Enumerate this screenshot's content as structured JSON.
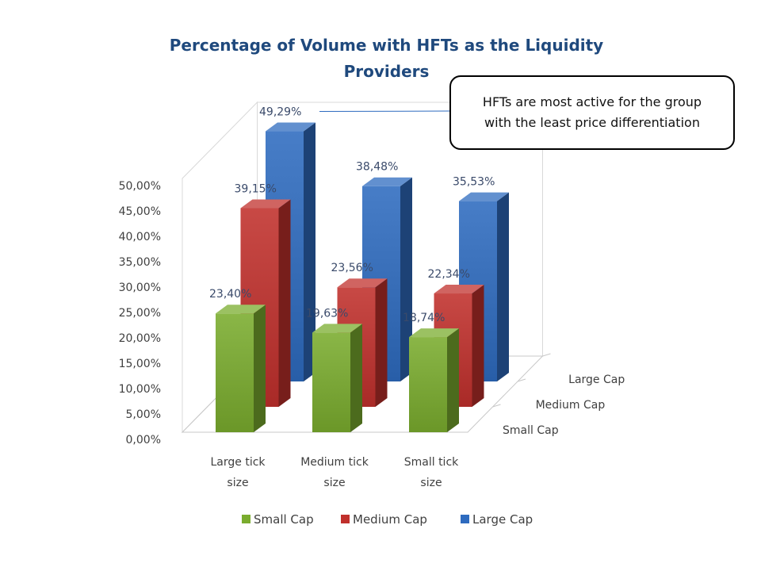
{
  "chart_data": {
    "type": "bar",
    "title": "Percentage of Volume with HFTs as the Liquidity Providers",
    "title_lines": [
      "Percentage of Volume with HFTs as the Liquidity",
      "Providers"
    ],
    "categories": [
      "Large tick size",
      "Medium tick size",
      "Small tick size"
    ],
    "category_lines": [
      [
        "Large tick",
        "size"
      ],
      [
        "Medium tick",
        "size"
      ],
      [
        "Small tick",
        "size"
      ]
    ],
    "series": [
      {
        "name": "Small Cap",
        "color": "#7aac2e",
        "values": [
          23.4,
          19.63,
          18.74
        ],
        "labels": [
          "23,40%",
          "19,63%",
          "18,74%"
        ]
      },
      {
        "name": "Medium Cap",
        "color": "#c0302c",
        "values": [
          39.15,
          23.56,
          22.34
        ],
        "labels": [
          "39,15%",
          "23,56%",
          "22,34%"
        ]
      },
      {
        "name": "Large Cap",
        "color": "#2e6bbf",
        "values": [
          49.29,
          38.48,
          35.53
        ],
        "labels": [
          "49,29%",
          "38,48%",
          "35,53%"
        ]
      }
    ],
    "y_ticks": [
      "0,00%",
      "5,00%",
      "10,00%",
      "15,00%",
      "20,00%",
      "25,00%",
      "30,00%",
      "35,00%",
      "40,00%",
      "45,00%",
      "50,00%"
    ],
    "ylim": [
      0,
      50
    ],
    "depth_axis_labels": [
      "Small Cap",
      "Medium Cap",
      "Large Cap"
    ],
    "legend": {
      "position": "bottom",
      "items": [
        "Small Cap",
        "Medium Cap",
        "Large Cap"
      ]
    },
    "grid": false,
    "annotation": {
      "text": "HFTs are most active for the group with the least price differentiation",
      "target_label": "49,29%"
    }
  }
}
